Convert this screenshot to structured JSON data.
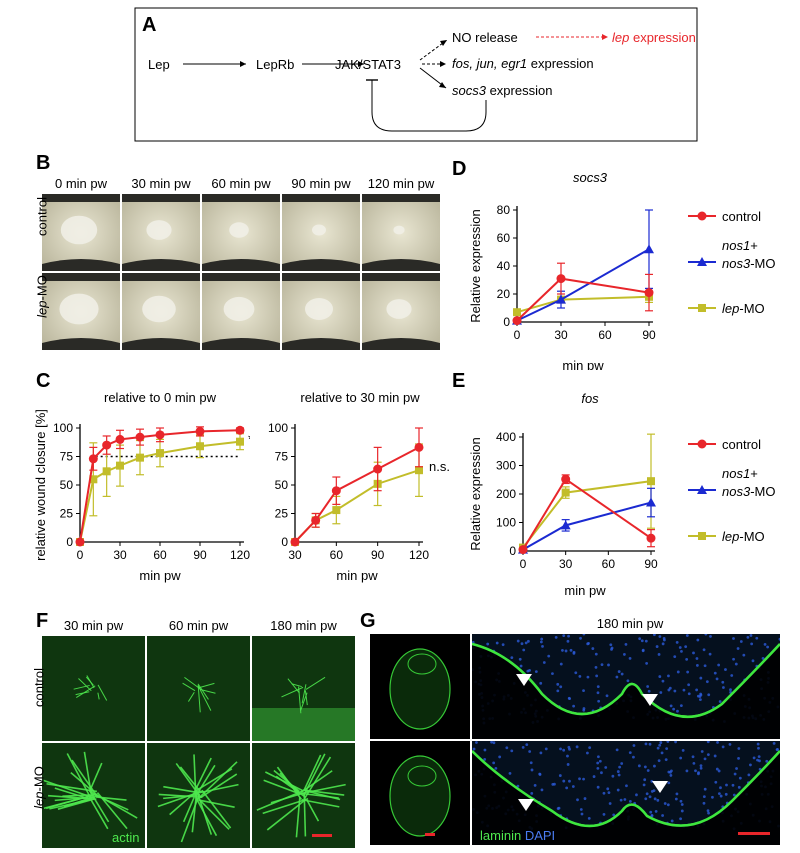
{
  "panel_labels": {
    "A": "A",
    "B": "B",
    "C": "C",
    "D": "D",
    "E": "E",
    "F": "F",
    "G": "G"
  },
  "pathway": {
    "lep": "Lep",
    "leprb": "LepRb",
    "jak": "JAK/STAT3",
    "no_release": "NO release",
    "lep_expr_gene": "lep",
    "lep_expr_word": " expression",
    "fos_genes": "fos, jun, egr1",
    "fos_word": " expression",
    "socs3_gene": "socs3",
    "socs3_word": " expression"
  },
  "panel_b": {
    "columns": [
      "0 min pw",
      "30 min pw",
      "60 min pw",
      "90 min pw",
      "120 min pw"
    ],
    "rows": [
      {
        "label": "control",
        "italic_part": "",
        "suffix": "control"
      },
      {
        "label": "lep-MO",
        "italic_part": "lep",
        "suffix": "-MO"
      }
    ]
  },
  "panel_f": {
    "columns": [
      "30 min pw",
      "60 min pw",
      "180 min pw"
    ],
    "row_control": "control",
    "row_mo_italic": "lep",
    "row_mo_suffix": "-MO",
    "stain": "actin"
  },
  "panel_g": {
    "title": "180 min pw",
    "stain1": "laminin",
    "stain2": "DAPI"
  },
  "colors": {
    "control": "#e8262b",
    "nos": "#1b2ad1",
    "lep_mo": "#c2bd2a",
    "green_stain": "#32d232",
    "dapi": "#2a5ad8"
  },
  "chart_data": [
    {
      "id": "C-left",
      "type": "line",
      "title": "relative to 0 min pw",
      "xlabel": "min pw",
      "ylabel": "relative wound closure [%]",
      "xlim": [
        0,
        120
      ],
      "ylim": [
        0,
        100
      ],
      "xticks": [
        0,
        30,
        60,
        90,
        120
      ],
      "yticks": [
        0,
        25,
        50,
        75,
        100
      ],
      "reference_line": 75,
      "significance": "*",
      "series": [
        {
          "name": "control",
          "x": [
            0,
            10,
            20,
            30,
            45,
            60,
            90,
            120
          ],
          "y": [
            0,
            73,
            85,
            90,
            92,
            94,
            97,
            98
          ],
          "err": [
            0,
            10,
            8,
            8,
            7,
            6,
            4,
            2
          ]
        },
        {
          "name": "lep-MO",
          "x": [
            0,
            10,
            20,
            30,
            45,
            60,
            90,
            120
          ],
          "y": [
            0,
            55,
            62,
            67,
            74,
            78,
            84,
            88
          ],
          "err": [
            0,
            32,
            22,
            18,
            15,
            12,
            10,
            7
          ]
        }
      ]
    },
    {
      "id": "C-right",
      "type": "line",
      "title": "relative to 30 min pw",
      "xlabel": "min pw",
      "ylabel": "",
      "xlim": [
        30,
        120
      ],
      "ylim": [
        0,
        100
      ],
      "xticks": [
        30,
        60,
        90,
        120
      ],
      "yticks": [
        0,
        25,
        50,
        75,
        100
      ],
      "significance": "n.s.",
      "series": [
        {
          "name": "control",
          "x": [
            30,
            45,
            60,
            90,
            120
          ],
          "y": [
            0,
            19,
            45,
            64,
            83
          ],
          "err": [
            0,
            6,
            12,
            19,
            17
          ]
        },
        {
          "name": "lep-MO",
          "x": [
            30,
            45,
            60,
            90,
            120
          ],
          "y": [
            0,
            19,
            28,
            51,
            63
          ],
          "err": [
            0,
            6,
            12,
            19,
            23
          ]
        }
      ]
    },
    {
      "id": "D",
      "type": "line",
      "title": "socs3",
      "xlabel": "min pw",
      "ylabel": "Relative expression",
      "xlim": [
        0,
        90
      ],
      "ylim": [
        0,
        80
      ],
      "xticks": [
        0,
        30,
        60,
        90
      ],
      "yticks": [
        0,
        20,
        40,
        60,
        80
      ],
      "series": [
        {
          "name": "control",
          "x": [
            0,
            30,
            90
          ],
          "y": [
            1,
            31,
            21
          ],
          "err": [
            1,
            11,
            13
          ]
        },
        {
          "name": "nos1+ nos3-MO",
          "x": [
            0,
            30,
            90
          ],
          "y": [
            1,
            16,
            52
          ],
          "err": [
            1,
            6,
            28
          ]
        },
        {
          "name": "lep-MO",
          "x": [
            0,
            30,
            90
          ],
          "y": [
            7,
            16,
            18
          ],
          "err": [
            1,
            2,
            4
          ]
        }
      ]
    },
    {
      "id": "E",
      "type": "line",
      "title": "fos",
      "xlabel": "min pw",
      "ylabel": "Relative expression",
      "xlim": [
        0,
        90
      ],
      "ylim": [
        0,
        400
      ],
      "xticks": [
        0,
        30,
        60,
        90
      ],
      "yticks": [
        0,
        100,
        200,
        300,
        400
      ],
      "series": [
        {
          "name": "control",
          "x": [
            0,
            30,
            90
          ],
          "y": [
            5,
            252,
            45
          ],
          "err": [
            3,
            15,
            30
          ]
        },
        {
          "name": "nos1+ nos3-MO",
          "x": [
            0,
            30,
            90
          ],
          "y": [
            5,
            90,
            170
          ],
          "err": [
            3,
            20,
            50
          ]
        },
        {
          "name": "lep-MO",
          "x": [
            0,
            30,
            90
          ],
          "y": [
            12,
            205,
            245
          ],
          "err": [
            3,
            20,
            165
          ]
        }
      ]
    }
  ],
  "legend": {
    "control": "control",
    "nos_line1_italic": "nos1",
    "nos_line1_plus": "+",
    "nos_line2_italic": "nos3",
    "nos_line2_suffix": "-MO",
    "lep_italic": "lep",
    "lep_suffix": "-MO"
  }
}
